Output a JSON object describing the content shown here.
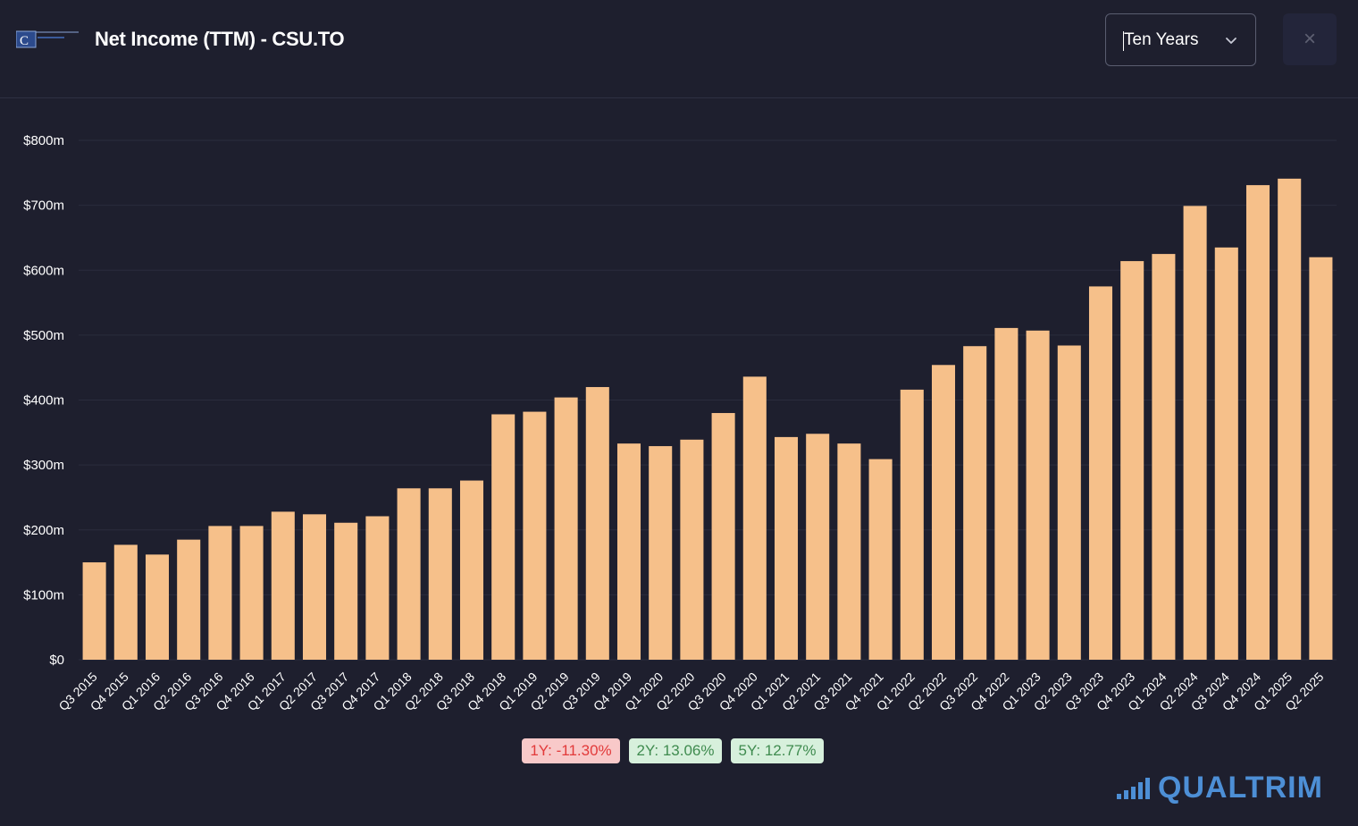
{
  "header": {
    "title": "Net Income (TTM) - CSU.TO",
    "logo_letter": "C",
    "period_select": {
      "value": "Ten Years",
      "icon": "chevron-down-icon"
    },
    "close_label": "×"
  },
  "growth": {
    "one_year": "1Y: -11.30%",
    "two_year": "2Y: 13.06%",
    "five_year": "5Y: 12.77%"
  },
  "brand": {
    "name": "QUALTRIM",
    "icon": "bar-chart-icon"
  },
  "colors": {
    "background": "#1e1f2e",
    "bar": "#f6c08a",
    "grid": "#2a2c3d",
    "axis_text": "#ffffff",
    "negative": "#e23a3a",
    "positive": "#3f8b4f",
    "brand": "#4d8fd6"
  },
  "chart_data": {
    "type": "bar",
    "title": "Net Income (TTM) - CSU.TO",
    "xlabel": "",
    "ylabel": "",
    "ylim": [
      0,
      800
    ],
    "yticks": [
      "$0",
      "$100m",
      "$200m",
      "$300m",
      "$400m",
      "$500m",
      "$600m",
      "$700m",
      "$800m"
    ],
    "grid": true,
    "categories": [
      "Q3 2015",
      "Q4 2015",
      "Q1 2016",
      "Q2 2016",
      "Q3 2016",
      "Q4 2016",
      "Q1 2017",
      "Q2 2017",
      "Q3 2017",
      "Q4 2017",
      "Q1 2018",
      "Q2 2018",
      "Q3 2018",
      "Q4 2018",
      "Q1 2019",
      "Q2 2019",
      "Q3 2019",
      "Q4 2019",
      "Q1 2020",
      "Q2 2020",
      "Q3 2020",
      "Q4 2020",
      "Q1 2021",
      "Q2 2021",
      "Q3 2021",
      "Q4 2021",
      "Q1 2022",
      "Q2 2022",
      "Q3 2022",
      "Q4 2022",
      "Q1 2023",
      "Q2 2023",
      "Q3 2023",
      "Q4 2023",
      "Q1 2024",
      "Q2 2024",
      "Q3 2024",
      "Q4 2024",
      "Q1 2025",
      "Q2 2025"
    ],
    "values": [
      150,
      177,
      162,
      185,
      206,
      206,
      228,
      224,
      211,
      221,
      264,
      264,
      276,
      378,
      382,
      404,
      420,
      333,
      329,
      339,
      380,
      436,
      343,
      348,
      333,
      309,
      416,
      454,
      483,
      511,
      507,
      484,
      575,
      614,
      625,
      699,
      635,
      731,
      741,
      620
    ]
  }
}
